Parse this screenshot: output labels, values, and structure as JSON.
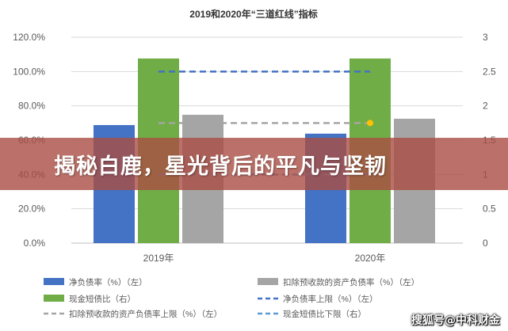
{
  "chart_data": {
    "type": "bar",
    "title": "2019和2020年“三道红线”指标",
    "categories": [
      "2019年",
      "2020年"
    ],
    "left_axis": {
      "ticks": [
        "0.0%",
        "20.0%",
        "40.0%",
        "60.0%",
        "80.0%",
        "100.0%",
        "120.0%"
      ],
      "ylim": [
        0,
        120
      ]
    },
    "right_axis": {
      "ticks": [
        "0",
        "0.5",
        "1",
        "1.5",
        "2",
        "2.5",
        "3"
      ],
      "ylim": [
        0,
        3
      ]
    },
    "series": [
      {
        "name": "净负债率（%）（左）",
        "type": "bar",
        "axis": "left",
        "color": "#4472c4",
        "values": [
          68.8,
          63.8
        ]
      },
      {
        "name": "现金短债比（右）",
        "type": "bar",
        "axis": "right",
        "color": "#70ad47",
        "values": [
          2.69,
          2.69
        ]
      },
      {
        "name": "扣除预收款的资产负债率（%）（左）",
        "type": "bar",
        "axis": "left",
        "color": "#a5a5a5",
        "values": [
          74.8,
          72.5
        ]
      },
      {
        "name": "净负债率上限（%）（左）",
        "type": "dashed-line",
        "axis": "left",
        "color": "#4472c4",
        "values": [
          100,
          100
        ]
      },
      {
        "name": "扣除预收款的资产负债率上限（%）（左）",
        "type": "dashed-line",
        "axis": "left",
        "color": "#a5a5a5",
        "values": [
          70,
          70
        ]
      },
      {
        "name": "现金短债比下限（右）",
        "type": "dashed-line",
        "axis": "right",
        "color": "#5b9bd5",
        "values": [
          1,
          1
        ]
      }
    ],
    "grid": true,
    "legend": "bottom"
  },
  "banner": {
    "text": "揭秘白鹿，星光背后的平凡与坚韧"
  },
  "watermark": {
    "text": "搜狐号@中科财金"
  }
}
